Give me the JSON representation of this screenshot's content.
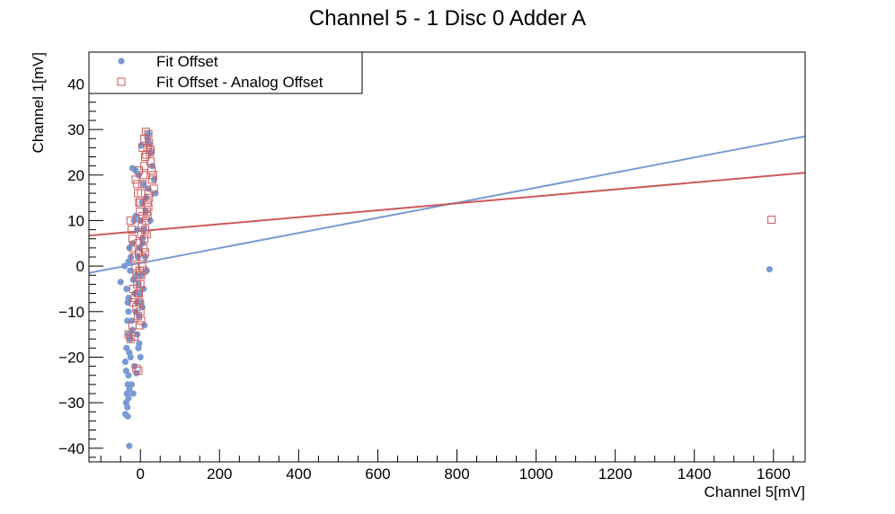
{
  "chart_data": {
    "type": "scatter",
    "title": "Channel 5 - 1 Disc 0 Adder A",
    "xlabel": "Channel 5[mV]",
    "ylabel": "Channel 1[mV]",
    "xlim": [
      -130,
      1680
    ],
    "ylim": [
      -43,
      47
    ],
    "x_ticks": [
      0,
      200,
      400,
      600,
      800,
      1000,
      1200,
      1400,
      1600
    ],
    "y_ticks": [
      -40,
      -30,
      -20,
      -10,
      0,
      10,
      20,
      30,
      40
    ],
    "x_tick_labels": [
      "0",
      "200",
      "400",
      "600",
      "800",
      "1000",
      "1200",
      "1400",
      "1600"
    ],
    "y_tick_labels": [
      "−40",
      "−30",
      "−20",
      "−10",
      "0",
      "10",
      "20",
      "30",
      "40"
    ],
    "grid": false,
    "legend_position": "top-left",
    "series": [
      {
        "name": "Fit Offset",
        "color": "#7b9ad3",
        "marker": "circle",
        "points": [
          [
            -50,
            -3.5
          ],
          [
            -40,
            0
          ],
          [
            -30,
            1
          ],
          [
            -28,
            4
          ],
          [
            -35,
            -5
          ],
          [
            -32,
            -8
          ],
          [
            -30,
            -10
          ],
          [
            -33,
            -12
          ],
          [
            -30,
            -15
          ],
          [
            -35,
            -18
          ],
          [
            -28,
            -19
          ],
          [
            -25,
            -20
          ],
          [
            -38,
            -21
          ],
          [
            -36,
            -23
          ],
          [
            -30,
            -24
          ],
          [
            -32,
            -26
          ],
          [
            -28,
            -27
          ],
          [
            -34,
            -28
          ],
          [
            -30,
            -29
          ],
          [
            -36,
            -30
          ],
          [
            -33,
            -31
          ],
          [
            -38,
            -32.5
          ],
          [
            -32,
            -33
          ],
          [
            -28,
            -39.5
          ],
          [
            -15,
            -22
          ],
          [
            -10,
            -23.5
          ],
          [
            -5,
            -18
          ],
          [
            -8,
            -15
          ],
          [
            0,
            -20
          ],
          [
            -3,
            -17
          ],
          [
            -18,
            -28
          ],
          [
            -22,
            -26
          ],
          [
            -20,
            -14
          ],
          [
            -12,
            -10
          ],
          [
            -8,
            -8
          ],
          [
            -2,
            -6
          ],
          [
            -5,
            -4
          ],
          [
            3,
            -2
          ],
          [
            -10,
            -2
          ],
          [
            -6,
            2
          ],
          [
            -2,
            4
          ],
          [
            5,
            6
          ],
          [
            -8,
            8
          ],
          [
            -12,
            11
          ],
          [
            -16,
            10
          ],
          [
            -20,
            5
          ],
          [
            -24,
            2
          ],
          [
            -26,
            -1
          ],
          [
            0,
            10
          ],
          [
            4,
            14
          ],
          [
            8,
            18
          ],
          [
            -4,
            20
          ],
          [
            -12,
            21
          ],
          [
            -20,
            21.5
          ],
          [
            2,
            26.5
          ],
          [
            18,
            28
          ],
          [
            20,
            29
          ],
          [
            22,
            27
          ],
          [
            26,
            25
          ],
          [
            30,
            22
          ],
          [
            35,
            19
          ],
          [
            38,
            16
          ],
          [
            20,
            17
          ],
          [
            14,
            12
          ],
          [
            10,
            8
          ],
          [
            6,
            5
          ],
          [
            12,
            2
          ],
          [
            16,
            -1
          ],
          [
            8,
            -5
          ],
          [
            2,
            -8
          ],
          [
            -4,
            -11
          ],
          [
            10,
            -13
          ],
          [
            5,
            -9
          ],
          [
            -14,
            -6
          ],
          [
            -18,
            -3
          ],
          [
            -22,
            -12
          ],
          [
            -26,
            -16
          ],
          [
            -30,
            -7
          ],
          [
            15,
            15
          ],
          [
            25,
            10
          ],
          [
            1590,
            -0.7
          ]
        ]
      },
      {
        "name": "Fit Offset - Analog Offset",
        "color": "#c95a5a",
        "marker": "open-square",
        "points": [
          [
            -25,
            10
          ],
          [
            -22,
            8
          ],
          [
            -20,
            6
          ],
          [
            -18,
            4
          ],
          [
            -15,
            2
          ],
          [
            -12,
            0
          ],
          [
            -10,
            -2
          ],
          [
            -8,
            -4
          ],
          [
            -5,
            -6
          ],
          [
            -3,
            -8
          ],
          [
            0,
            -10
          ],
          [
            2,
            -12
          ],
          [
            -2,
            -13
          ],
          [
            -6,
            -11
          ],
          [
            -10,
            -9
          ],
          [
            -14,
            -7
          ],
          [
            -18,
            -5
          ],
          [
            -20,
            -13
          ],
          [
            -15,
            -15.5
          ],
          [
            -25,
            -16
          ],
          [
            -18,
            -8
          ],
          [
            -10,
            -22.5
          ],
          [
            -5,
            -23
          ],
          [
            -30,
            -15
          ],
          [
            0,
            14
          ],
          [
            2,
            16
          ],
          [
            5,
            18
          ],
          [
            8,
            20
          ],
          [
            10,
            22
          ],
          [
            12,
            24
          ],
          [
            6,
            26
          ],
          [
            10,
            28
          ],
          [
            14,
            29.5
          ],
          [
            20,
            29
          ],
          [
            22,
            27
          ],
          [
            24,
            25
          ],
          [
            26,
            23
          ],
          [
            28,
            21
          ],
          [
            30,
            19
          ],
          [
            32,
            20
          ],
          [
            34,
            17
          ],
          [
            20,
            16
          ],
          [
            18,
            14
          ],
          [
            16,
            12
          ],
          [
            14,
            10
          ],
          [
            12,
            8
          ],
          [
            10,
            6
          ],
          [
            8,
            4
          ],
          [
            6,
            2
          ],
          [
            4,
            0
          ],
          [
            2,
            -2
          ],
          [
            -1,
            12
          ],
          [
            -3,
            14
          ],
          [
            -6,
            16
          ],
          [
            -8,
            18
          ],
          [
            -4,
            21
          ],
          [
            -12,
            19
          ],
          [
            15,
            24.5
          ],
          [
            26,
            25.5
          ],
          [
            18,
            26
          ],
          [
            2,
            7
          ],
          [
            4,
            9
          ],
          [
            6,
            11
          ],
          [
            -4,
            3
          ],
          [
            -6,
            5
          ],
          [
            -2,
            -1
          ],
          [
            0,
            -4
          ],
          [
            -4,
            -6
          ],
          [
            8,
            -1
          ],
          [
            12,
            3
          ],
          [
            16,
            7
          ],
          [
            18,
            11
          ],
          [
            20,
            13
          ],
          [
            22,
            15
          ],
          [
            1595,
            10.2
          ]
        ]
      }
    ],
    "fit_lines": [
      {
        "series": "Fit Offset",
        "color": "#7b9ad3",
        "x": [
          -130,
          1680
        ],
        "y": [
          -1.5,
          28.5
        ]
      },
      {
        "series": "Fit Offset - Analog Offset",
        "color": "#c95a5a",
        "x": [
          -130,
          1680
        ],
        "y": [
          6.7,
          20.5
        ]
      }
    ]
  }
}
